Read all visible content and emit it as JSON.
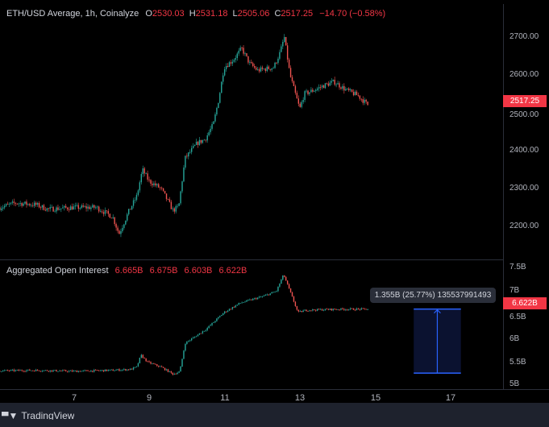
{
  "header": {
    "symbol": "ETH/USD Average, 1h, Coinalyze",
    "open_label": "O",
    "open": "2530.03",
    "high_label": "H",
    "high": "2531.18",
    "low_label": "L",
    "low": "2505.06",
    "close_label": "C",
    "close": "2517.25",
    "change": "−14.70 (−0.58%)"
  },
  "oi_header": {
    "title": "Aggregated Open Interest",
    "values": [
      "6.665B",
      "6.675B",
      "6.603B",
      "6.622B"
    ]
  },
  "measure_tooltip": "1.355B (25.77%) 135537991493",
  "branding": "TradingView",
  "colors": {
    "up": "#26a69a",
    "down": "#ef5350",
    "label": "#f23645",
    "measure": "#2962ff"
  },
  "chart_data": [
    {
      "type": "candlestick",
      "title": "ETH/USD Average, 1h, Coinalyze",
      "yticks": [
        "2700.00",
        "2600.00",
        "2500.00",
        "2400.00",
        "2300.00",
        "2200.00"
      ],
      "ylim": [
        2112,
        2775
      ],
      "last_value_label": "2517.25",
      "series": [
        [
          5.03,
          2250
        ],
        [
          5.45,
          2262
        ],
        [
          5.99,
          2257
        ],
        [
          6.31,
          2245
        ],
        [
          6.95,
          2250
        ],
        [
          7.59,
          2250
        ],
        [
          8.02,
          2225
        ],
        [
          8.19,
          2180
        ],
        [
          8.45,
          2240
        ],
        [
          8.66,
          2280
        ],
        [
          8.81,
          2350
        ],
        [
          8.98,
          2320
        ],
        [
          9.3,
          2300
        ],
        [
          9.51,
          2262
        ],
        [
          9.62,
          2242
        ],
        [
          9.77,
          2252
        ],
        [
          9.94,
          2380
        ],
        [
          10.26,
          2420
        ],
        [
          10.47,
          2430
        ],
        [
          10.69,
          2470
        ],
        [
          10.84,
          2540
        ],
        [
          10.97,
          2620
        ],
        [
          11.22,
          2640
        ],
        [
          11.44,
          2670
        ],
        [
          11.65,
          2630
        ],
        [
          11.86,
          2612
        ],
        [
          12.29,
          2620
        ],
        [
          12.46,
          2660
        ],
        [
          12.57,
          2700
        ],
        [
          12.72,
          2600
        ],
        [
          12.89,
          2540
        ],
        [
          12.98,
          2510
        ],
        [
          13.1,
          2550
        ],
        [
          13.36,
          2560
        ],
        [
          13.57,
          2570
        ],
        [
          13.89,
          2582
        ],
        [
          14.21,
          2560
        ],
        [
          14.53,
          2545
        ],
        [
          14.82,
          2517
        ]
      ]
    },
    {
      "type": "line-candles",
      "title": "Aggregated Open Interest",
      "yticks": [
        "7.5B",
        "7B",
        "6.5B",
        "6B",
        "5.5B",
        "5B"
      ],
      "ylim": [
        4.95,
        7.6
      ],
      "last_value_label": "6.622B",
      "series": [
        [
          5.03,
          5.32
        ],
        [
          6.0,
          5.33
        ],
        [
          7.0,
          5.31
        ],
        [
          8.0,
          5.33
        ],
        [
          8.5,
          5.35
        ],
        [
          8.66,
          5.4
        ],
        [
          8.77,
          5.65
        ],
        [
          8.95,
          5.5
        ],
        [
          9.3,
          5.4
        ],
        [
          9.62,
          5.25
        ],
        [
          9.8,
          5.3
        ],
        [
          9.94,
          5.9
        ],
        [
          10.5,
          6.2
        ],
        [
          10.97,
          6.55
        ],
        [
          11.4,
          6.75
        ],
        [
          12.04,
          6.9
        ],
        [
          12.36,
          7.0
        ],
        [
          12.55,
          7.35
        ],
        [
          12.72,
          7.0
        ],
        [
          12.93,
          6.55
        ],
        [
          13.15,
          6.6
        ],
        [
          14.0,
          6.62
        ],
        [
          14.82,
          6.62
        ]
      ]
    }
  ],
  "xticks": [
    {
      "label": "7",
      "day": 7
    },
    {
      "label": "9",
      "day": 9
    },
    {
      "label": "11",
      "day": 11
    },
    {
      "label": "13",
      "day": 13
    },
    {
      "label": "15",
      "day": 15
    },
    {
      "label": "17",
      "day": 17
    }
  ],
  "measure": {
    "from": 5.27,
    "to": 6.622,
    "day_start": 16.0,
    "day_end": 17.25
  }
}
